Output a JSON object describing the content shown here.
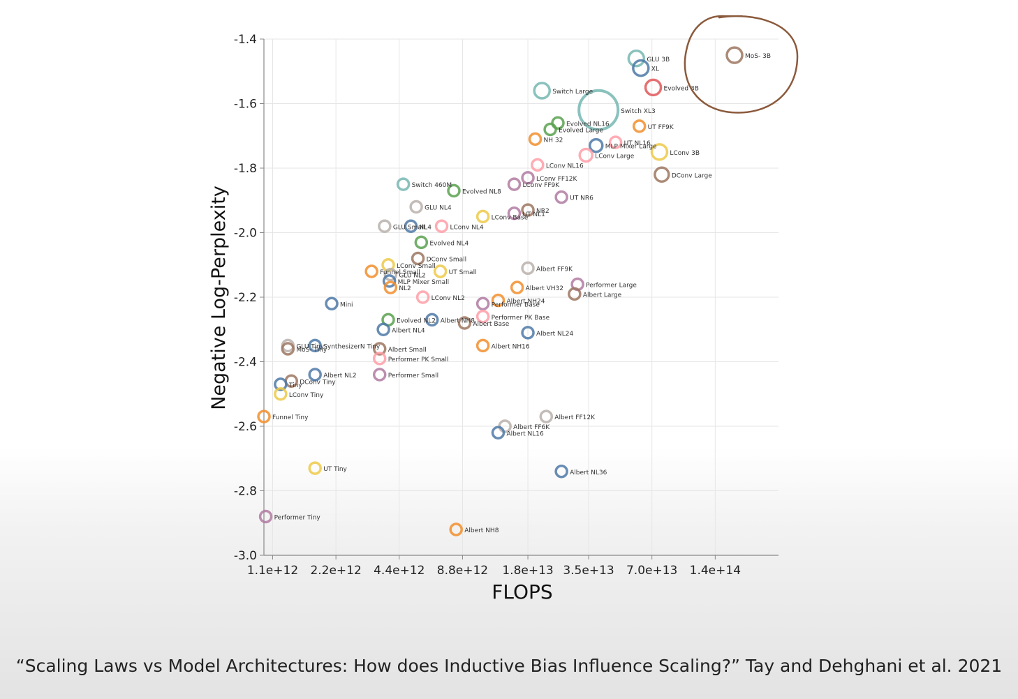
{
  "caption": "“Scaling Laws vs Model Architectures: How does Inductive Bias Influence Scaling?” Tay and Dehghani et al. 2021",
  "colors": {
    "blue": "#4e79a7",
    "orange": "#f28e2b",
    "red": "#e15759",
    "teal": "#76b7b2",
    "green": "#59a14f",
    "yellow": "#edc948",
    "purple": "#b07aa1",
    "pink": "#ff9da7",
    "brown": "#9c755f",
    "gray": "#bab0ac",
    "annotation": "#8b5a3c"
  },
  "chart_data": {
    "type": "scatter",
    "title": "",
    "xlabel": "FLOPS",
    "ylabel": "Negative Log-Perplexity",
    "x_scale": "log",
    "xlim": [
      1000000000000.0,
      280000000000000.0
    ],
    "ylim": [
      -3.0,
      -1.4
    ],
    "grid": true,
    "x_tick_labels": [
      "1.1e+12",
      "2.2e+12",
      "4.4e+12",
      "8.8e+12",
      "1.8e+13",
      "3.5e+13",
      "7.0e+13",
      "1.4e+14"
    ],
    "x_tick_values": [
      1100000000000.0,
      2200000000000.0,
      4400000000000.0,
      8800000000000.0,
      18000000000000.0,
      35000000000000.0,
      70000000000000.0,
      140000000000000.0
    ],
    "y_tick_labels": [
      "-1.4",
      "-1.6",
      "-1.8",
      "-2.0",
      "-2.2",
      "-2.4",
      "-2.6",
      "-2.8",
      "-3.0"
    ],
    "y_tick_values": [
      -1.4,
      -1.6,
      -1.8,
      -2.0,
      -2.2,
      -2.4,
      -2.6,
      -2.8,
      -3.0
    ],
    "highlight": "MoS- 3B",
    "points": [
      {
        "label": "MoS- 3B",
        "x": 173000000000000.0,
        "y": -1.45,
        "color": "brown",
        "r": 11
      },
      {
        "label": "GLU 3B",
        "x": 59000000000000.0,
        "y": -1.46,
        "color": "teal",
        "r": 11
      },
      {
        "label": "XL",
        "x": 62000000000000.0,
        "y": -1.49,
        "color": "blue",
        "r": 11
      },
      {
        "label": "Evolved 3B",
        "x": 71000000000000.0,
        "y": -1.55,
        "color": "red",
        "r": 11
      },
      {
        "label": "Switch XL3",
        "x": 39000000000000.0,
        "y": -1.62,
        "color": "teal",
        "r": 28
      },
      {
        "label": "Switch Large",
        "x": 21000000000000.0,
        "y": -1.56,
        "color": "teal",
        "r": 11
      },
      {
        "label": "UT FF9K",
        "x": 61000000000000.0,
        "y": -1.67,
        "color": "orange",
        "r": 8
      },
      {
        "label": "LConv 3B",
        "x": 76000000000000.0,
        "y": -1.75,
        "color": "yellow",
        "r": 11
      },
      {
        "label": "DConv Large",
        "x": 78000000000000.0,
        "y": -1.82,
        "color": "brown",
        "r": 10
      },
      {
        "label": "MLP Mixer Large",
        "x": 38000000000000.0,
        "y": -1.73,
        "color": "blue",
        "r": 9
      },
      {
        "label": "UT NL16",
        "x": 47000000000000.0,
        "y": -1.72,
        "color": "pink",
        "r": 8
      },
      {
        "label": "LConv Large",
        "x": 34000000000000.0,
        "y": -1.76,
        "color": "pink",
        "r": 9
      },
      {
        "label": "Evolved Large",
        "x": 23000000000000.0,
        "y": -1.68,
        "color": "green",
        "r": 8
      },
      {
        "label": "Evolved NL16",
        "x": 25000000000000.0,
        "y": -1.66,
        "color": "green",
        "r": 8
      },
      {
        "label": "NH 32",
        "x": 19500000000000.0,
        "y": -1.71,
        "color": "orange",
        "r": 8
      },
      {
        "label": "LConv NL16",
        "x": 20000000000000.0,
        "y": -1.79,
        "color": "pink",
        "r": 8
      },
      {
        "label": "LConv FF12K",
        "x": 18000000000000.0,
        "y": -1.83,
        "color": "purple",
        "r": 8
      },
      {
        "label": "LConv FF9K",
        "x": 15500000000000.0,
        "y": -1.85,
        "color": "purple",
        "r": 8
      },
      {
        "label": "UT NR6",
        "x": 26000000000000.0,
        "y": -1.89,
        "color": "purple",
        "r": 8
      },
      {
        "label": "NR2",
        "x": 18000000000000.0,
        "y": -1.93,
        "color": "brown",
        "r": 8
      },
      {
        "label": "UT NL1",
        "x": 15500000000000.0,
        "y": -1.94,
        "color": "purple",
        "r": 8
      },
      {
        "label": "LConv Base",
        "x": 11000000000000.0,
        "y": -1.95,
        "color": "yellow",
        "r": 8
      },
      {
        "label": "Switch 460M",
        "x": 4600000000000.0,
        "y": -1.85,
        "color": "teal",
        "r": 8
      },
      {
        "label": "Evolved NL8",
        "x": 8000000000000.0,
        "y": -1.87,
        "color": "green",
        "r": 8
      },
      {
        "label": "GLU NL4",
        "x": 5300000000000.0,
        "y": -1.92,
        "color": "gray",
        "r": 8
      },
      {
        "label": "LConv NL4",
        "x": 7000000000000.0,
        "y": -1.98,
        "color": "pink",
        "r": 8
      },
      {
        "label": "NL4",
        "x": 5000000000000.0,
        "y": -1.98,
        "color": "blue",
        "r": 8
      },
      {
        "label": "GLU Small",
        "x": 3750000000000.0,
        "y": -1.98,
        "color": "gray",
        "r": 8
      },
      {
        "label": "Evolved NL4",
        "x": 5600000000000.0,
        "y": -2.03,
        "color": "green",
        "r": 8
      },
      {
        "label": "DConv Small",
        "x": 5400000000000.0,
        "y": -2.08,
        "color": "brown",
        "r": 8
      },
      {
        "label": "LConv Small",
        "x": 3900000000000.0,
        "y": -2.1,
        "color": "yellow",
        "r": 8
      },
      {
        "label": "Funnel Small",
        "x": 3250000000000.0,
        "y": -2.12,
        "color": "orange",
        "r": 8
      },
      {
        "label": "UT Small",
        "x": 6900000000000.0,
        "y": -2.12,
        "color": "yellow",
        "r": 8
      },
      {
        "label": "GLU NL2",
        "x": 4000000000000.0,
        "y": -2.13,
        "color": "gray",
        "r": 8
      },
      {
        "label": "MLP Mixer Small",
        "x": 3950000000000.0,
        "y": -2.15,
        "color": "blue",
        "r": 8
      },
      {
        "label": "NL2",
        "x": 4000000000000.0,
        "y": -2.17,
        "color": "orange",
        "r": 8
      },
      {
        "label": "LConv NL2",
        "x": 5700000000000.0,
        "y": -2.2,
        "color": "pink",
        "r": 8
      },
      {
        "label": "Mini",
        "x": 2100000000000.0,
        "y": -2.22,
        "color": "blue",
        "r": 8
      },
      {
        "label": "Evolved NL2",
        "x": 3900000000000.0,
        "y": -2.27,
        "color": "green",
        "r": 8
      },
      {
        "label": "Albert NL4",
        "x": 3700000000000.0,
        "y": -2.3,
        "color": "blue",
        "r": 8
      },
      {
        "label": "Albert NH8",
        "x": 6300000000000.0,
        "y": -2.27,
        "color": "blue",
        "r": 8
      },
      {
        "label": "Albert Base",
        "x": 9000000000000.0,
        "y": -2.28,
        "color": "brown",
        "r": 8
      },
      {
        "label": "Performer Base",
        "x": 11000000000000.0,
        "y": -2.22,
        "color": "purple",
        "r": 8
      },
      {
        "label": "Albert NH24",
        "x": 13000000000000.0,
        "y": -2.21,
        "color": "orange",
        "r": 8
      },
      {
        "label": "Performer PK Base",
        "x": 11000000000000.0,
        "y": -2.26,
        "color": "pink",
        "r": 8
      },
      {
        "label": "Albert VH32",
        "x": 16000000000000.0,
        "y": -2.17,
        "color": "orange",
        "r": 8
      },
      {
        "label": "Albert FF9K",
        "x": 18000000000000.0,
        "y": -2.11,
        "color": "gray",
        "r": 8
      },
      {
        "label": "Performer Large",
        "x": 31000000000000.0,
        "y": -2.16,
        "color": "purple",
        "r": 8
      },
      {
        "label": "Albert Large",
        "x": 30000000000000.0,
        "y": -2.19,
        "color": "brown",
        "r": 8
      },
      {
        "label": "Albert NL24",
        "x": 18000000000000.0,
        "y": -2.31,
        "color": "blue",
        "r": 8
      },
      {
        "label": "Albert NH16",
        "x": 11000000000000.0,
        "y": -2.35,
        "color": "orange",
        "r": 8
      },
      {
        "label": "GLU Tiny",
        "x": 1300000000000.0,
        "y": -2.35,
        "color": "gray",
        "r": 8
      },
      {
        "label": "MoS- Tiny",
        "x": 1300000000000.0,
        "y": -2.36,
        "color": "brown",
        "r": 8
      },
      {
        "label": "SynthesizerN Tiny",
        "x": 1750000000000.0,
        "y": -2.35,
        "color": "blue",
        "r": 8
      },
      {
        "label": "Albert Small",
        "x": 3550000000000.0,
        "y": -2.36,
        "color": "brown",
        "r": 8
      },
      {
        "label": "Performer PK Small",
        "x": 3550000000000.0,
        "y": -2.39,
        "color": "pink",
        "r": 8
      },
      {
        "label": "Albert NL2",
        "x": 1750000000000.0,
        "y": -2.44,
        "color": "blue",
        "r": 8
      },
      {
        "label": "Performer Small",
        "x": 3550000000000.0,
        "y": -2.44,
        "color": "purple",
        "r": 8
      },
      {
        "label": "DConv Tiny",
        "x": 1350000000000.0,
        "y": -2.46,
        "color": "brown",
        "r": 8
      },
      {
        "label": "Tiny",
        "x": 1200000000000.0,
        "y": -2.47,
        "color": "blue",
        "r": 8
      },
      {
        "label": "LConv Tiny",
        "x": 1200000000000.0,
        "y": -2.5,
        "color": "yellow",
        "r": 8
      },
      {
        "label": "Funnel Tiny",
        "x": 1000000000000.0,
        "y": -2.57,
        "color": "orange",
        "r": 8
      },
      {
        "label": "Albert FF12K",
        "x": 22000000000000.0,
        "y": -2.57,
        "color": "gray",
        "r": 8
      },
      {
        "label": "Albert FF6K",
        "x": 14000000000000.0,
        "y": -2.6,
        "color": "gray",
        "r": 8
      },
      {
        "label": "Albert NL16",
        "x": 13000000000000.0,
        "y": -2.62,
        "color": "blue",
        "r": 8
      },
      {
        "label": "Albert NL36",
        "x": 26000000000000.0,
        "y": -2.74,
        "color": "blue",
        "r": 8
      },
      {
        "label": "UT Tiny",
        "x": 1750000000000.0,
        "y": -2.73,
        "color": "yellow",
        "r": 8
      },
      {
        "label": "Performer Tiny",
        "x": 1020000000000.0,
        "y": -2.88,
        "color": "purple",
        "r": 8
      },
      {
        "label": "Albert NH8",
        "x": 8200000000000.0,
        "y": -2.92,
        "color": "orange",
        "r": 8
      }
    ]
  }
}
